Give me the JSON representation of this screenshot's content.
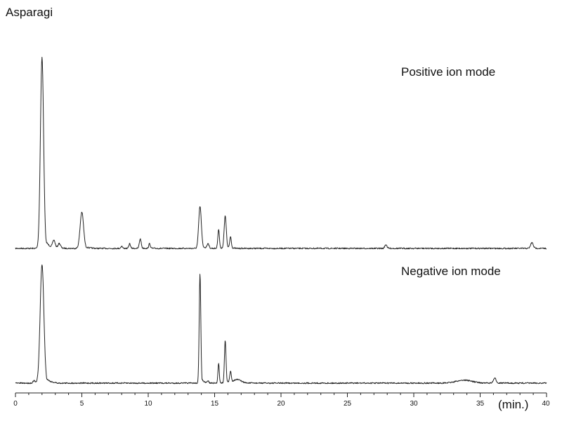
{
  "chart_data": {
    "type": "line",
    "title": "Asparagi",
    "xlabel": "(min.)",
    "xlim": [
      0,
      40
    ],
    "x_ticks": [
      0,
      5,
      10,
      15,
      20,
      25,
      30,
      35,
      40
    ],
    "grid": false,
    "series": [
      {
        "name": "Positive ion mode",
        "peaks": [
          {
            "rt": 2.0,
            "height": 1.0,
            "width": 0.12
          },
          {
            "rt": 2.9,
            "height": 0.04,
            "width": 0.1
          },
          {
            "rt": 3.3,
            "height": 0.025,
            "width": 0.1
          },
          {
            "rt": 5.0,
            "height": 0.19,
            "width": 0.13
          },
          {
            "rt": 8.0,
            "height": 0.012,
            "width": 0.06
          },
          {
            "rt": 8.6,
            "height": 0.025,
            "width": 0.06
          },
          {
            "rt": 9.4,
            "height": 0.05,
            "width": 0.07
          },
          {
            "rt": 10.1,
            "height": 0.025,
            "width": 0.06
          },
          {
            "rt": 13.9,
            "height": 0.22,
            "width": 0.1
          },
          {
            "rt": 14.5,
            "height": 0.025,
            "width": 0.07
          },
          {
            "rt": 15.3,
            "height": 0.1,
            "width": 0.06
          },
          {
            "rt": 15.8,
            "height": 0.17,
            "width": 0.08
          },
          {
            "rt": 16.2,
            "height": 0.06,
            "width": 0.06
          },
          {
            "rt": 27.9,
            "height": 0.02,
            "width": 0.08
          },
          {
            "rt": 38.9,
            "height": 0.03,
            "width": 0.1
          }
        ]
      },
      {
        "name": "Negative ion mode",
        "peaks": [
          {
            "rt": 1.4,
            "height": 0.02,
            "width": 0.08
          },
          {
            "rt": 2.0,
            "height": 1.0,
            "width": 0.14
          },
          {
            "rt": 13.9,
            "height": 0.92,
            "width": 0.06
          },
          {
            "rt": 14.5,
            "height": 0.02,
            "width": 0.06
          },
          {
            "rt": 15.3,
            "height": 0.17,
            "width": 0.05
          },
          {
            "rt": 15.8,
            "height": 0.36,
            "width": 0.06
          },
          {
            "rt": 16.2,
            "height": 0.09,
            "width": 0.06
          },
          {
            "rt": 16.7,
            "height": 0.03,
            "width": 0.3
          },
          {
            "rt": 33.8,
            "height": 0.025,
            "width": 0.6
          },
          {
            "rt": 36.1,
            "height": 0.04,
            "width": 0.1
          }
        ]
      }
    ]
  }
}
